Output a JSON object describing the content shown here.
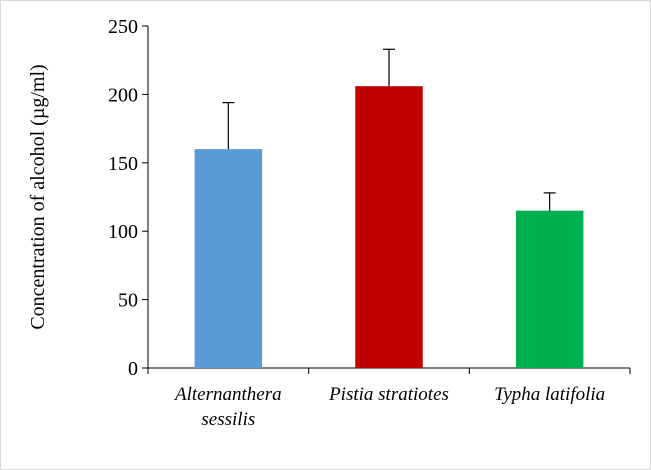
{
  "chart_data": {
    "type": "bar",
    "categories": [
      [
        "Alternanthera",
        "sessilis"
      ],
      [
        "Pistia stratiotes"
      ],
      [
        "Typha latifolia"
      ]
    ],
    "values": [
      160,
      206,
      115
    ],
    "error_upper": [
      34,
      27,
      13
    ],
    "colors": [
      "#5B9BD5",
      "#C00000",
      "#00B050"
    ],
    "title": "",
    "xlabel": "",
    "ylabel": "Concentration of alcohol (µg/ml)",
    "ylim": [
      0,
      250
    ],
    "yticks": [
      0,
      50,
      100,
      150,
      200,
      250
    ],
    "grid": false,
    "legend": "none"
  }
}
